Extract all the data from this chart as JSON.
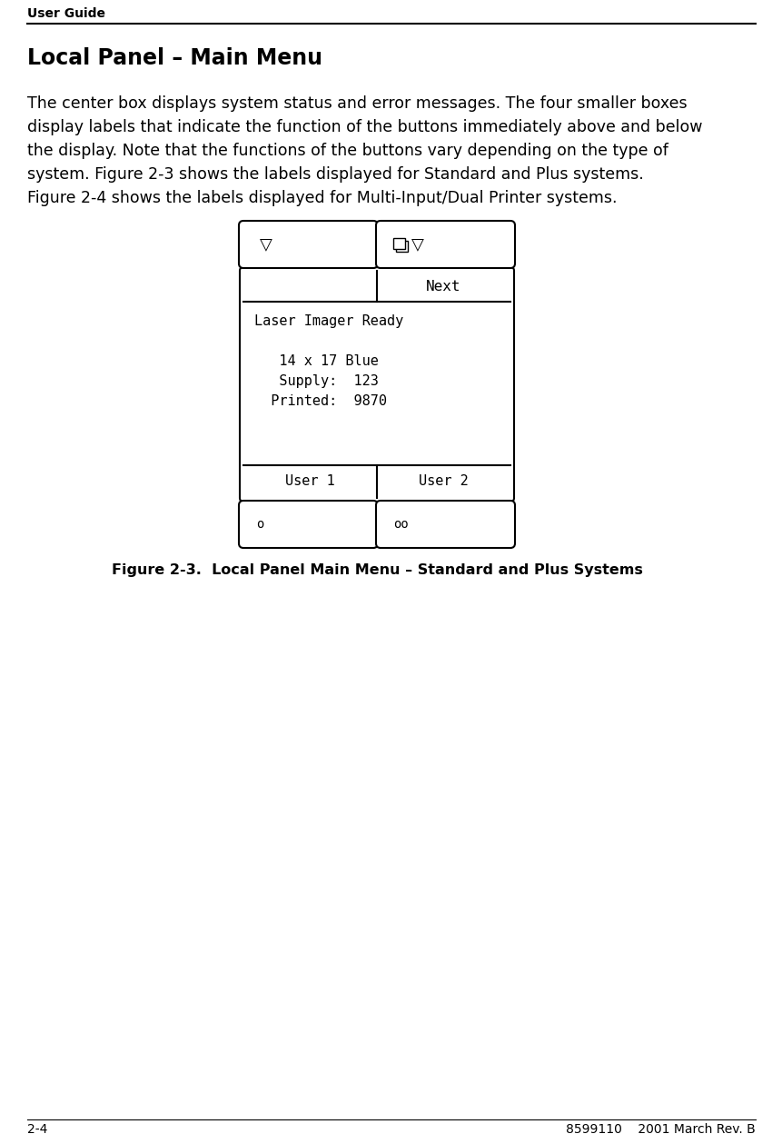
{
  "page_title": "User Guide",
  "section_title": "Local Panel – Main Menu",
  "body_lines": [
    "The center box displays system status and error messages. The four smaller boxes",
    "display labels that indicate the function of the buttons immediately above and below",
    "the display. Note that the functions of the buttons vary depending on the type of",
    "system. Figure 2-3 shows the labels displayed for Standard and Plus systems.",
    "Figure 2-4 shows the labels displayed for Multi-Input/Dual Printer systems."
  ],
  "display_lines": [
    "Laser Imager Ready",
    "",
    "   14 x 17 Blue",
    "   Supply:  123",
    "  Printed:  9870"
  ],
  "top_right_label": "Next",
  "bottom_left_label": "User 1",
  "bottom_right_label": "User 2",
  "figure_caption": "Figure 2-3.  Local Panel Main Menu – Standard and Plus Systems",
  "footer_left": "2-4",
  "footer_right": "8599110    2001 March Rev. B",
  "bg_color": "#ffffff",
  "text_color": "#000000"
}
